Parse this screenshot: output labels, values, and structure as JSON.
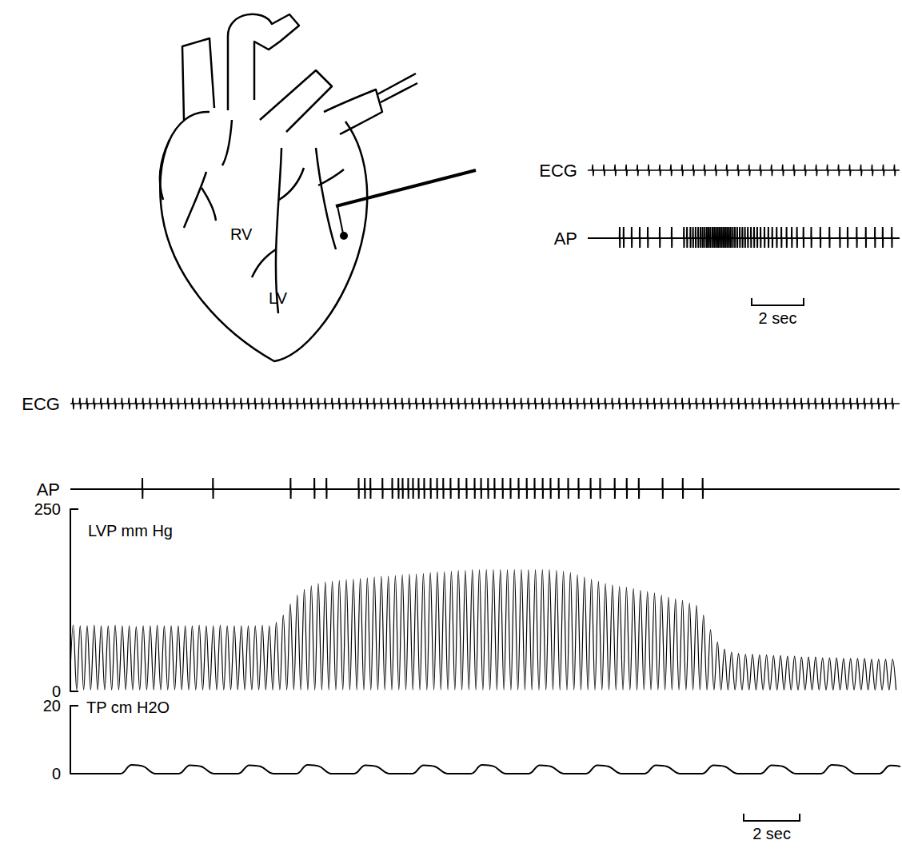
{
  "diagram": {
    "labels": [
      "RV",
      "LV"
    ]
  },
  "chart_data": [
    {
      "type": "line",
      "xlim": [
        0,
        12
      ],
      "tick_labels": false,
      "grid": false,
      "scale_bar": {
        "value": 2,
        "label": "2 sec"
      },
      "series": [
        {
          "name": "ECG",
          "type": "ecg",
          "color": "#000000",
          "x": [
            0.2,
            0.63,
            1.06,
            1.49,
            1.92,
            2.35,
            2.78,
            3.21,
            3.64,
            4.07,
            4.5,
            4.93,
            5.36,
            5.79,
            6.22,
            6.65,
            7.08,
            7.51,
            7.94,
            8.37,
            8.8,
            9.23,
            9.66,
            10.09,
            10.52,
            10.95,
            11.38,
            11.81
          ]
        },
        {
          "name": "AP",
          "type": "spikes",
          "color": "#000000",
          "x": [
            1.23,
            1.38,
            1.69,
            2.0,
            2.31,
            2.77,
            3.23,
            3.7,
            3.82,
            3.95,
            4.05,
            4.15,
            4.25,
            4.34,
            4.42,
            4.5,
            4.58,
            4.65,
            4.72,
            4.8,
            4.87,
            4.94,
            5.01,
            5.08,
            5.15,
            5.22,
            5.29,
            5.36,
            5.43,
            5.5,
            5.58,
            5.66,
            5.75,
            5.85,
            5.95,
            6.05,
            6.16,
            6.28,
            6.4,
            6.52,
            6.65,
            6.8,
            6.95,
            7.1,
            7.27,
            7.45,
            7.65,
            7.85,
            8.05,
            8.3,
            8.6,
            8.95,
            9.3,
            9.7,
            10.0,
            10.35,
            10.7,
            11.05,
            11.35,
            11.7
          ]
        }
      ]
    },
    {
      "type": "line",
      "xlim": [
        0,
        29.6
      ],
      "tick_labels": "y",
      "grid": false,
      "scale_bar": {
        "value": 2,
        "label": "2 sec"
      },
      "x": [
        0.1,
        0.35,
        0.6,
        0.85,
        1.1,
        1.35,
        1.6,
        1.85,
        2.1,
        2.35,
        2.6,
        2.85,
        3.1,
        3.35,
        3.6,
        3.85,
        4.1,
        4.35,
        4.6,
        4.85,
        5.1,
        5.35,
        5.6,
        5.85,
        6.1,
        6.35,
        6.6,
        6.85,
        7.1,
        7.35,
        7.6,
        7.85,
        8.1,
        8.35,
        8.6,
        8.85,
        9.1,
        9.35,
        9.6,
        9.85,
        10.1,
        10.35,
        10.6,
        10.85,
        11.1,
        11.35,
        11.6,
        11.85,
        12.1,
        12.35,
        12.6,
        12.85,
        13.1,
        13.35,
        13.6,
        13.85,
        14.1,
        14.35,
        14.6,
        14.85,
        15.1,
        15.35,
        15.6,
        15.85,
        16.1,
        16.35,
        16.6,
        16.85,
        17.1,
        17.35,
        17.6,
        17.85,
        18.1,
        18.35,
        18.6,
        18.85,
        19.1,
        19.35,
        19.6,
        19.85,
        20.1,
        20.35,
        20.6,
        20.85,
        21.1,
        21.35,
        21.6,
        21.85,
        22.1,
        22.35,
        22.6,
        22.85,
        23.1,
        23.35,
        23.6,
        23.85,
        24.1,
        24.35,
        24.6,
        24.85,
        25.1,
        25.35,
        25.6,
        25.85,
        26.1,
        26.35,
        26.6,
        26.85,
        27.1,
        27.35,
        27.6,
        27.85,
        28.1,
        28.35,
        28.6,
        28.85,
        29.1,
        29.35
      ],
      "series": [
        {
          "name": "ECG",
          "type": "ecg",
          "color": "#000000"
        },
        {
          "name": "AP",
          "type": "spikes",
          "color": "#000000",
          "x": [
            2.57,
            5.09,
            7.86,
            8.71,
            9.14,
            10.29,
            10.51,
            10.71,
            11.14,
            11.49,
            11.71,
            11.86,
            12.06,
            12.23,
            12.43,
            12.63,
            12.86,
            13.09,
            13.31,
            13.57,
            13.86,
            14.14,
            14.43,
            14.66,
            14.91,
            15.14,
            15.43,
            15.71,
            16.0,
            16.29,
            16.57,
            16.86,
            17.14,
            17.43,
            17.77,
            18.14,
            18.57,
            18.91,
            19.43,
            19.86,
            20.29,
            21.14,
            21.86,
            22.57
          ]
        },
        {
          "name": "LVP mm Hg",
          "type": "line",
          "color": "#000000",
          "ylim": [
            0,
            250
          ],
          "yticks": [
            0,
            250
          ],
          "diastolic": 2,
          "values": [
            91,
            90,
            90,
            91,
            90,
            90,
            91,
            90,
            90,
            89,
            90,
            90,
            91,
            90,
            90,
            90,
            90,
            90,
            91,
            90,
            90,
            91,
            90,
            90,
            90,
            90,
            90,
            91,
            90,
            95,
            105,
            120,
            132,
            140,
            145,
            148,
            150,
            151,
            152,
            153,
            154,
            155,
            156,
            157,
            158,
            158,
            159,
            160,
            161,
            161,
            162,
            163,
            164,
            164,
            165,
            166,
            166,
            167,
            167,
            167,
            167,
            167,
            167,
            167,
            167,
            167,
            167,
            167,
            167,
            166,
            165,
            163,
            160,
            157,
            154,
            151,
            148,
            146,
            144,
            143,
            141,
            139,
            137,
            135,
            132,
            129,
            127,
            125,
            121,
            118,
            105,
            85,
            68,
            58,
            54,
            52,
            51,
            51,
            50,
            50,
            49,
            49,
            48,
            48,
            47,
            47,
            47,
            46,
            46,
            46,
            45,
            45,
            45,
            45,
            44,
            44,
            44,
            44
          ]
        },
        {
          "name": "TP cm H2O",
          "type": "hump",
          "color": "#000000",
          "ylim": [
            0,
            20
          ],
          "yticks": [
            0,
            20
          ],
          "x": [
            2.29,
            4.37,
            6.49,
            8.57,
            10.63,
            12.71,
            14.8,
            16.86,
            18.91,
            21.0,
            23.06,
            25.14,
            27.29,
            29.37
          ],
          "values": [
            2.6,
            2.5,
            2.5,
            2.6,
            2.5,
            2.5,
            2.6,
            2.5,
            2.5,
            2.5,
            2.5,
            2.5,
            2.6,
            2.4
          ]
        }
      ]
    }
  ]
}
